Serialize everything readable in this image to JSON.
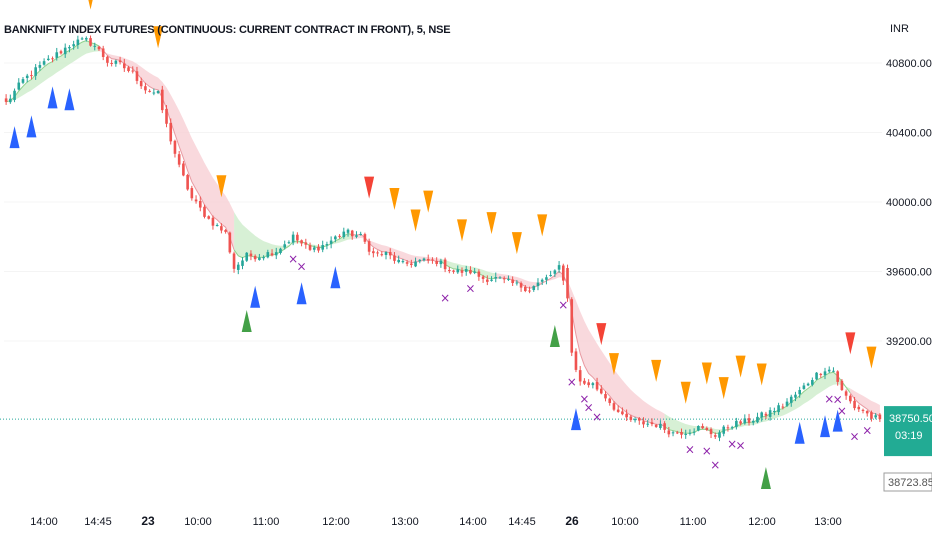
{
  "header": {
    "title": "BANKNIFTY INDEX FUTURES (CONTINUOUS: CURRENT CONTRACT IN FRONT), 5, NSE"
  },
  "price_axis": {
    "currency": "INR",
    "current_price": "38750.50",
    "countdown": "03:19",
    "low_price": "38723.85",
    "current_tag_color": "#22ab94"
  },
  "colors": {
    "bull": "#26a69a",
    "bear": "#ef5350",
    "band_up_fill": "#cdeccb",
    "band_up_line": "#8fd18c",
    "band_down_fill": "#f8d0d4",
    "band_down_line": "#e89aa2",
    "marker_orange": "#ff9800",
    "marker_red": "#f44336",
    "marker_blue": "#2962ff",
    "marker_green": "#43a047",
    "marker_x": "#8e24aa",
    "price_line": "#26a69a"
  },
  "chart_data": {
    "type": "candlestick",
    "title": "BANKNIFTY INDEX FUTURES (CONTINUOUS: CURRENT CONTRACT IN FRONT), 5, NSE",
    "interval": "5",
    "exchange": "NSE",
    "currency": "INR",
    "x_ticks": [
      {
        "label": "14:00",
        "bold": false
      },
      {
        "label": "14:45",
        "bold": false
      },
      {
        "label": "23",
        "bold": true
      },
      {
        "label": "10:00",
        "bold": false
      },
      {
        "label": "11:00",
        "bold": false
      },
      {
        "label": "12:00",
        "bold": false
      },
      {
        "label": "13:00",
        "bold": false
      },
      {
        "label": "14:00",
        "bold": false
      },
      {
        "label": "14:45",
        "bold": false
      },
      {
        "label": "26",
        "bold": true
      },
      {
        "label": "10:00",
        "bold": false
      },
      {
        "label": "11:00",
        "bold": false
      },
      {
        "label": "12:00",
        "bold": false
      },
      {
        "label": "13:00",
        "bold": false
      }
    ],
    "y_ticks": [
      40800,
      40400,
      40000,
      39600,
      39200
    ],
    "ylim": [
      38650,
      41000
    ],
    "current_price": 38750.5,
    "close_anchors": [
      [
        0,
        40570
      ],
      [
        4,
        40700
      ],
      [
        8,
        40780
      ],
      [
        12,
        40850
      ],
      [
        16,
        40920
      ],
      [
        19,
        40930
      ],
      [
        21,
        40900
      ],
      [
        24,
        40810
      ],
      [
        27,
        40790
      ],
      [
        30,
        40740
      ],
      [
        33,
        40650
      ],
      [
        36,
        40620
      ],
      [
        38,
        40440
      ],
      [
        41,
        40200
      ],
      [
        44,
        40020
      ],
      [
        48,
        39900
      ],
      [
        52,
        39820
      ],
      [
        54,
        39620
      ],
      [
        57,
        39690
      ],
      [
        60,
        39690
      ],
      [
        64,
        39720
      ],
      [
        68,
        39800
      ],
      [
        72,
        39720
      ],
      [
        76,
        39760
      ],
      [
        80,
        39830
      ],
      [
        84,
        39800
      ],
      [
        87,
        39700
      ],
      [
        90,
        39700
      ],
      [
        94,
        39640
      ],
      [
        98,
        39660
      ],
      [
        102,
        39660
      ],
      [
        106,
        39600
      ],
      [
        110,
        39600
      ],
      [
        113,
        39560
      ],
      [
        116,
        39560
      ],
      [
        120,
        39530
      ],
      [
        124,
        39500
      ],
      [
        128,
        39560
      ],
      [
        131,
        39620
      ],
      [
        133,
        39460
      ],
      [
        134,
        39130
      ],
      [
        136,
        38960
      ],
      [
        139,
        38950
      ],
      [
        142,
        38880
      ],
      [
        146,
        38760
      ],
      [
        150,
        38730
      ],
      [
        154,
        38720
      ],
      [
        158,
        38670
      ],
      [
        161,
        38680
      ],
      [
        164,
        38700
      ],
      [
        168,
        38660
      ],
      [
        172,
        38720
      ],
      [
        176,
        38740
      ],
      [
        180,
        38780
      ],
      [
        184,
        38830
      ],
      [
        188,
        38910
      ],
      [
        191,
        38990
      ],
      [
        194,
        39040
      ],
      [
        196,
        39030
      ],
      [
        198,
        38910
      ],
      [
        201,
        38820
      ],
      [
        203,
        38800
      ],
      [
        205,
        38760
      ],
      [
        207,
        38750.5
      ]
    ],
    "band_up_segments": [
      [
        0,
        22
      ],
      [
        54,
        82
      ],
      [
        103,
        116
      ],
      [
        156,
        200
      ]
    ],
    "band_down_segments": [
      [
        22,
        54
      ],
      [
        82,
        103
      ],
      [
        116,
        156
      ],
      [
        200,
        207
      ]
    ],
    "markers": [
      {
        "type": "orange_down",
        "bars": [
          20,
          36,
          51,
          92,
          97,
          100,
          108,
          115,
          121,
          127,
          144,
          154,
          161,
          166,
          170,
          174,
          179,
          205
        ]
      },
      {
        "type": "red_down",
        "bars": [
          18,
          86,
          141,
          200
        ]
      },
      {
        "type": "blue_up",
        "bars": [
          2,
          6,
          11,
          15,
          59,
          70,
          78,
          135,
          188,
          194,
          197
        ]
      },
      {
        "type": "green_up",
        "bars": [
          57,
          130,
          180
        ]
      },
      {
        "type": "purple_x",
        "bars": [
          68,
          70,
          104,
          110,
          132,
          134,
          137,
          138,
          140,
          162,
          166,
          168,
          172,
          174,
          195,
          197,
          198,
          201,
          204
        ]
      }
    ]
  }
}
